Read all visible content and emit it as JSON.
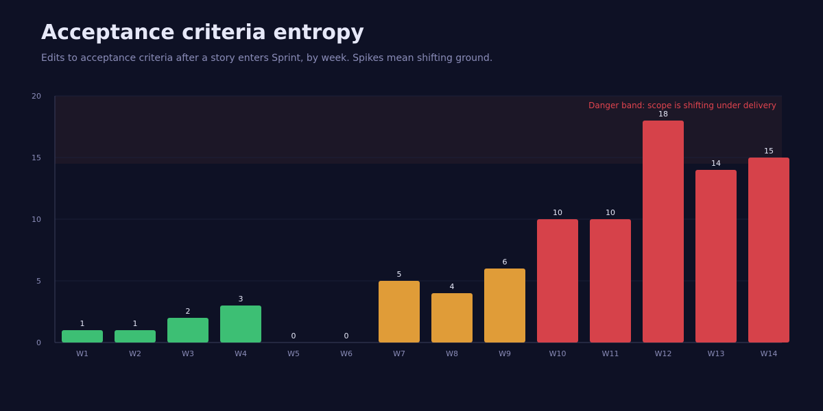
{
  "header": {
    "title": "Acceptance criteria entropy",
    "subtitle": "Edits to acceptance criteria after a story enters Sprint, by week. Spikes mean shifting ground."
  },
  "chart_data": {
    "type": "bar",
    "categories": [
      "W1",
      "W2",
      "W3",
      "W4",
      "W5",
      "W6",
      "W7",
      "W8",
      "W9",
      "W10",
      "W11",
      "W12",
      "W13",
      "W14"
    ],
    "values": [
      1,
      1,
      2,
      3,
      0,
      0,
      5,
      4,
      6,
      10,
      10,
      18,
      14,
      15
    ],
    "ylim": [
      0,
      20
    ],
    "yticks": [
      0,
      5,
      10,
      15,
      20
    ],
    "grid": true,
    "data_labels": true,
    "danger_band": {
      "from": 14.5,
      "to": 20,
      "label": "Danger band: scope is shifting under delivery"
    },
    "colors": {
      "low": "#3dbf74",
      "medium": "#e09c38",
      "high": "#d6424a",
      "band_fill": "#1c1727",
      "band_text": "#e0444e",
      "grid": "#1b1f38",
      "axis": "#3a3e5c",
      "tick_text": "#8a8cb8",
      "value_text": "#e6e8f8"
    },
    "color_thresholds": {
      "medium_from": 4,
      "high_from": 10
    }
  }
}
